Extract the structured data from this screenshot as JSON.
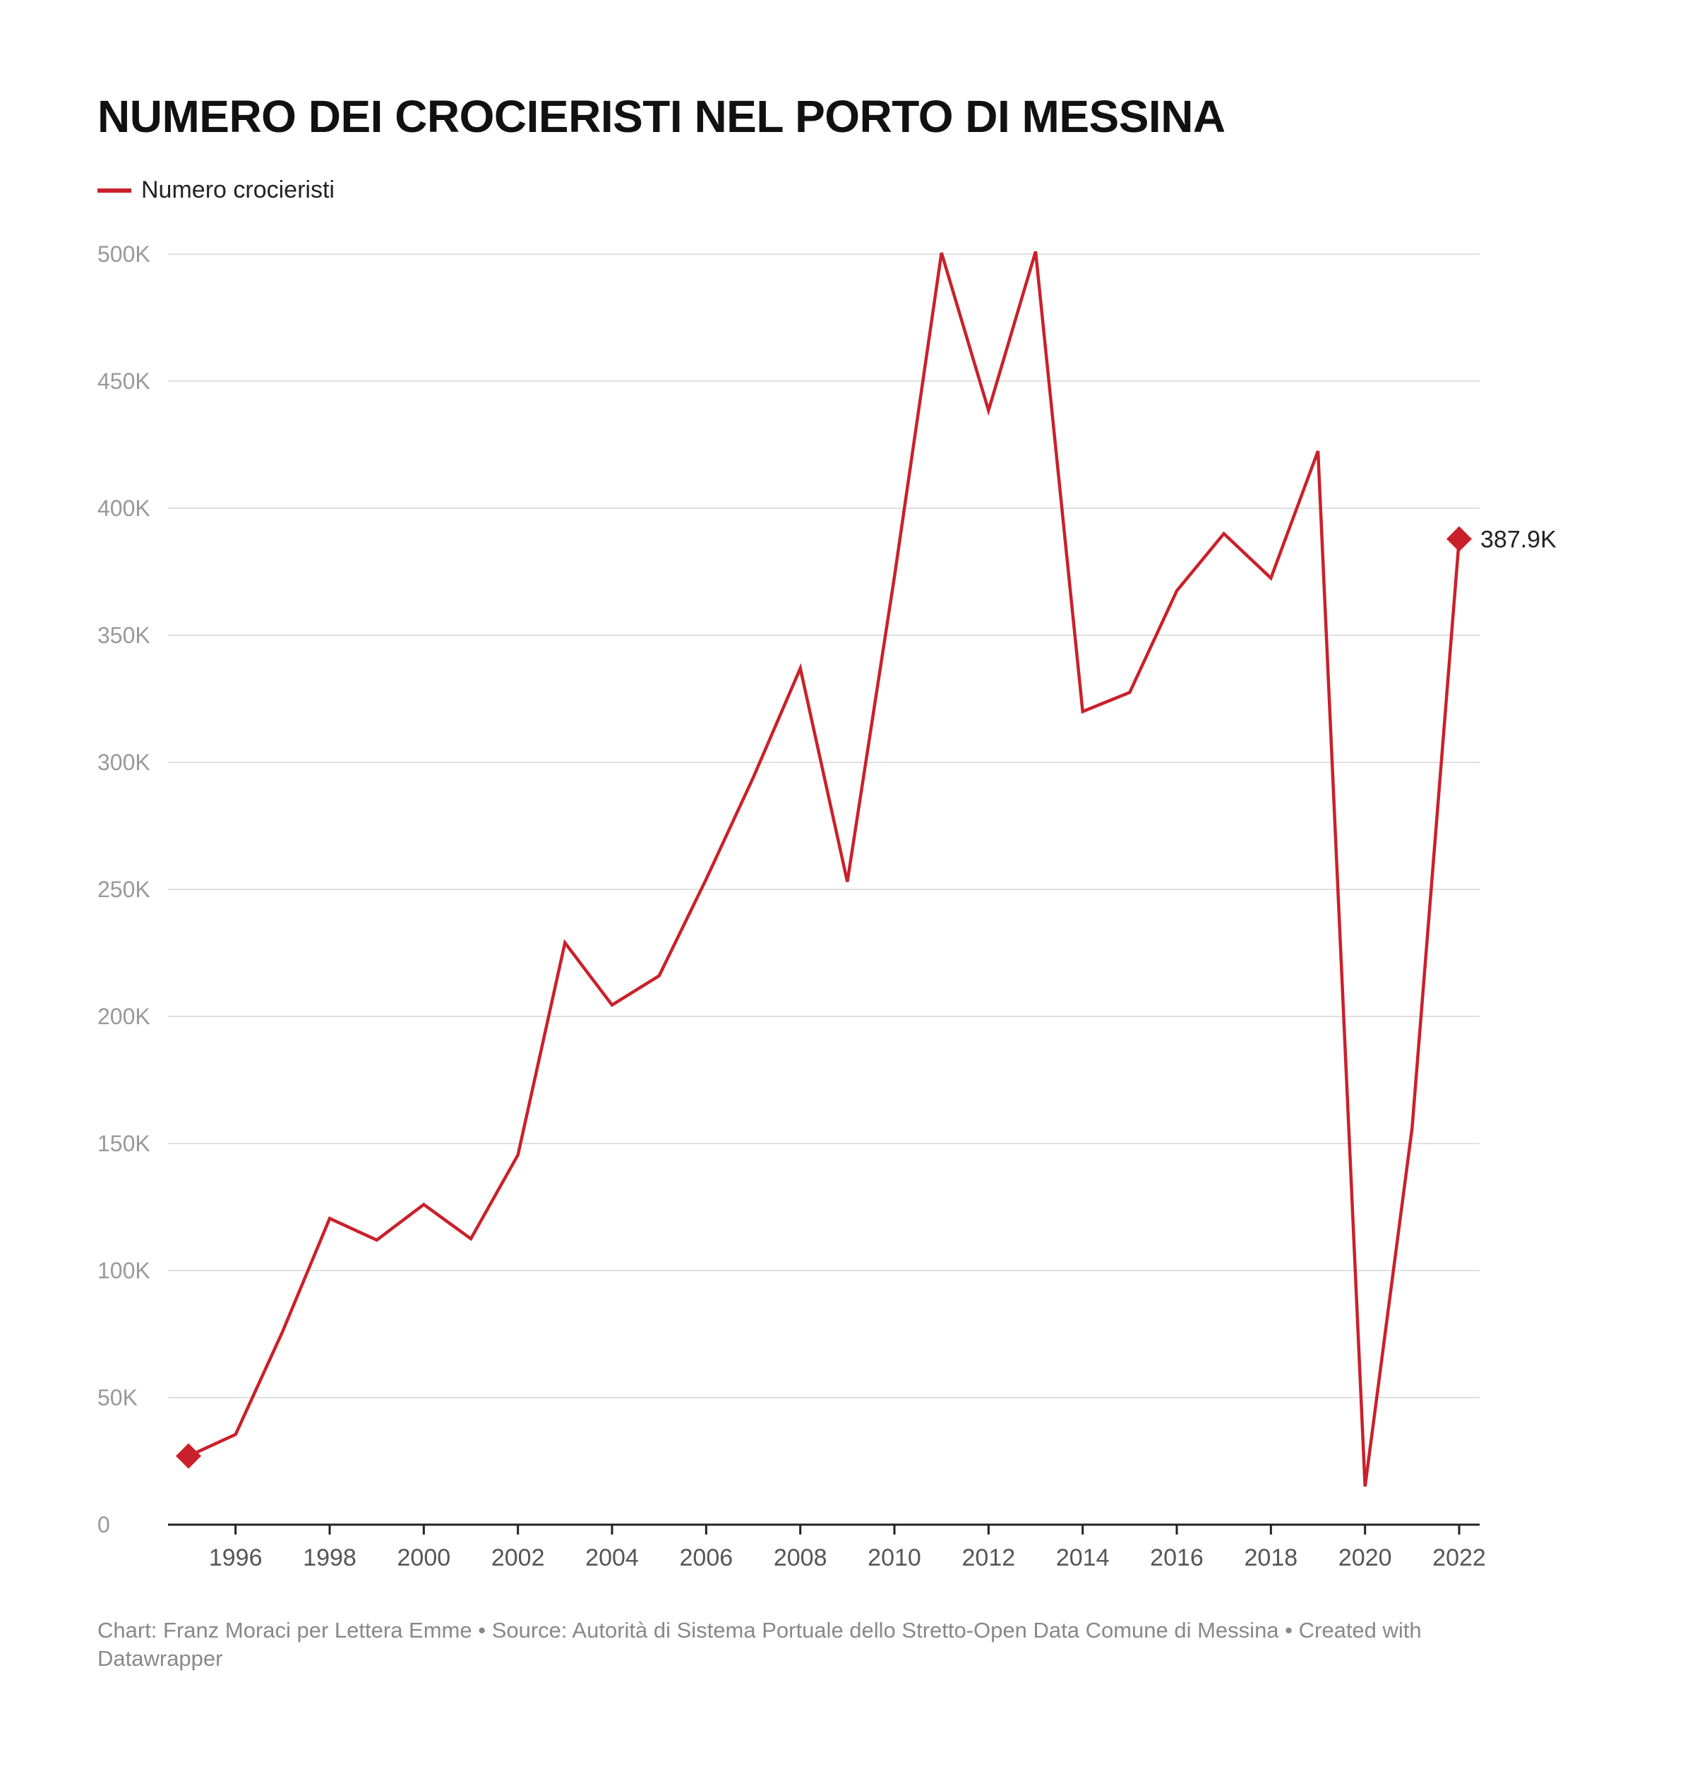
{
  "chart_data": {
    "type": "line",
    "title": "NUMERO DEI CROCIERISTI NEL PORTO DI MESSINA",
    "xlabel": "",
    "ylabel": "",
    "x": [
      1995,
      1996,
      1997,
      1998,
      1999,
      2000,
      2001,
      2002,
      2003,
      2004,
      2005,
      2006,
      2007,
      2008,
      2009,
      2010,
      2011,
      2012,
      2013,
      2014,
      2015,
      2016,
      2017,
      2018,
      2019,
      2020,
      2021,
      2022
    ],
    "series": [
      {
        "name": "Numero crocieristi",
        "color": "#c9212a",
        "values": [
          27000,
          35500,
          76000,
          120500,
          112000,
          126000,
          112500,
          145500,
          229000,
          204500,
          216000,
          254000,
          294000,
          337000,
          253000,
          373000,
          500500,
          438500,
          501000,
          320000,
          327500,
          367500,
          390000,
          372500,
          422500,
          15000,
          156000,
          387900
        ]
      }
    ],
    "ylim": [
      0,
      500000
    ],
    "y_ticks": [
      0,
      50000,
      100000,
      150000,
      200000,
      250000,
      300000,
      350000,
      400000,
      450000,
      500000
    ],
    "y_tick_labels": [
      "0",
      "50K",
      "100K",
      "150K",
      "200K",
      "250K",
      "300K",
      "350K",
      "400K",
      "450K",
      "500K"
    ],
    "x_ticks": [
      1996,
      1998,
      2000,
      2002,
      2004,
      2006,
      2008,
      2010,
      2012,
      2014,
      2016,
      2018,
      2020,
      2022
    ],
    "x_tick_labels": [
      "1996",
      "1998",
      "2000",
      "2002",
      "2004",
      "2006",
      "2008",
      "2010",
      "2012",
      "2014",
      "2016",
      "2018",
      "2020",
      "2022"
    ],
    "grid": true,
    "legend_position": "top-left",
    "end_label": "387.9K",
    "markers": "diamond at first and last point"
  },
  "footer": {
    "text": "Chart: Franz Moraci per Lettera Emme • Source: Autorità di Sistema Portuale dello Stretto-Open Data Comune di Messina • Created with Datawrapper"
  }
}
